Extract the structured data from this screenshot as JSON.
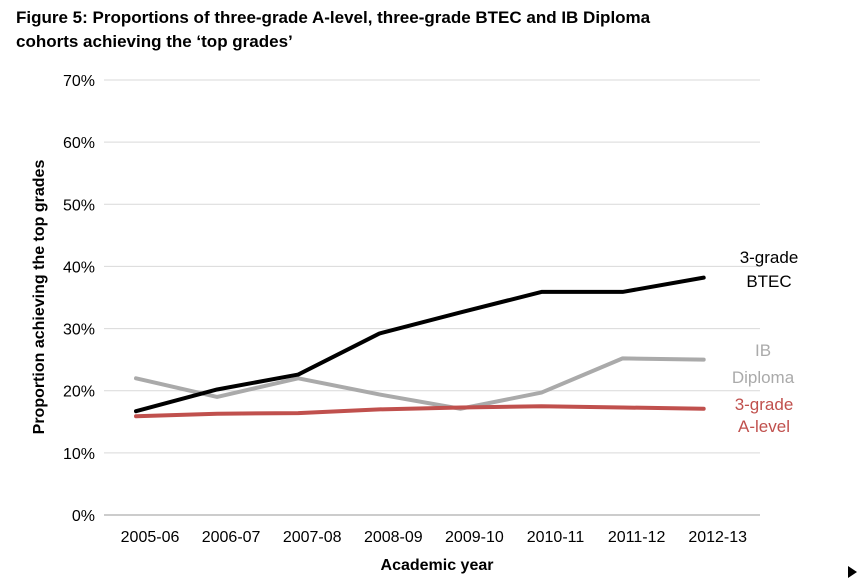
{
  "figure": {
    "title_line1": "Figure 5: Proportions of three-grade A-level, three-grade BTEC and IB Diploma",
    "title_line2": "cohorts achieving the ‘top grades’"
  },
  "chart_data": {
    "type": "line",
    "title": "Figure 5: Proportions of three-grade A-level, three-grade BTEC and IB Diploma cohorts achieving the ‘top grades’",
    "xlabel": "Academic year",
    "ylabel": "Proportion achieving the top grades",
    "categories": [
      "2005-06",
      "2006-07",
      "2007-08",
      "2008-09",
      "2009-10",
      "2010-11",
      "2011-12",
      "2012-13"
    ],
    "ylim": [
      0,
      70
    ],
    "yticks": [
      0,
      10,
      20,
      30,
      40,
      50,
      60,
      70
    ],
    "ytick_labels": [
      "0%",
      "10%",
      "20%",
      "30%",
      "40%",
      "50%",
      "60%",
      "70%"
    ],
    "grid": true,
    "legend": "inline labels at line ends",
    "series": [
      {
        "label_line1": "3-grade",
        "label_line2": "BTEC",
        "color": "#000000",
        "values": [
          16.7,
          20.2,
          22.6,
          29.2,
          32.6,
          35.9,
          35.9,
          38.2
        ]
      },
      {
        "label_line1": "IB",
        "label_line2": "Diploma",
        "color": "#aaaaaa",
        "values": [
          22.0,
          19.0,
          22.0,
          19.4,
          17.1,
          19.7,
          25.2,
          25.0
        ]
      },
      {
        "label_line1": "3-grade",
        "label_line2": "A-level",
        "color": "#c0504d",
        "values": [
          15.9,
          16.3,
          16.4,
          17.0,
          17.3,
          17.5,
          17.3,
          17.1
        ]
      }
    ]
  }
}
